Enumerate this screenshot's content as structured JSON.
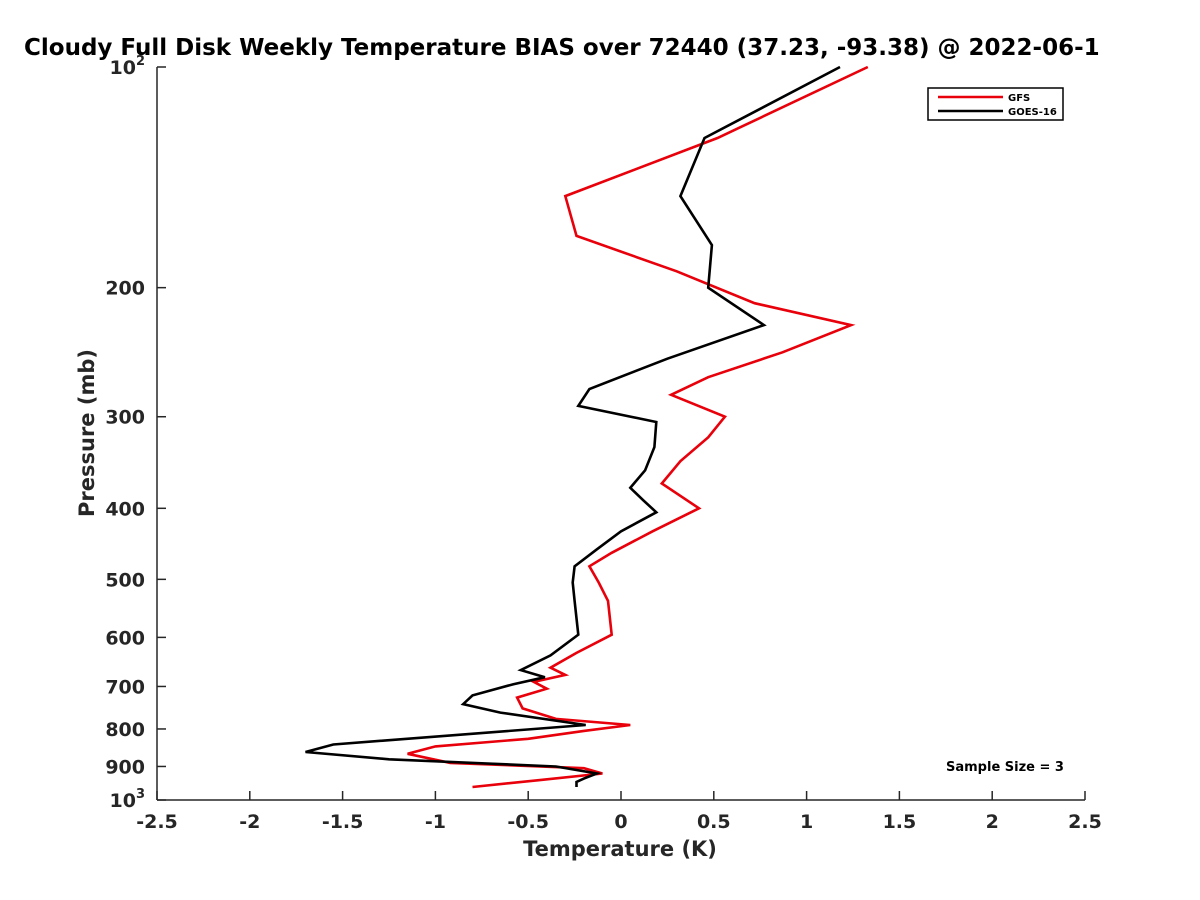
{
  "chart_data": {
    "type": "line",
    "title": "Cloudy Full Disk Weekly Temperature BIAS over 72440 (37.23, -93.38) @ 2022-06-1",
    "xlabel": "Temperature (K)",
    "ylabel": "Pressure (mb)",
    "xlim": [
      -2.5,
      2.5
    ],
    "ylim": [
      100,
      1000
    ],
    "y_scale": "log",
    "y_reversed": true,
    "grid": false,
    "legend_position": "top-right",
    "x_ticks": [
      {
        "value": -2.5,
        "label": "-2.5"
      },
      {
        "value": -2,
        "label": "-2"
      },
      {
        "value": -1.5,
        "label": "-1.5"
      },
      {
        "value": -1,
        "label": "-1"
      },
      {
        "value": -0.5,
        "label": "-0.5"
      },
      {
        "value": 0,
        "label": "0"
      },
      {
        "value": 0.5,
        "label": "0.5"
      },
      {
        "value": 1,
        "label": "1"
      },
      {
        "value": 1.5,
        "label": "1.5"
      },
      {
        "value": 2,
        "label": "2"
      },
      {
        "value": 2.5,
        "label": "2.5"
      }
    ],
    "y_ticks": [
      {
        "value": 100,
        "base": "10",
        "exp": "2"
      },
      {
        "value": 200,
        "base": "200",
        "exp": ""
      },
      {
        "value": 300,
        "base": "300",
        "exp": ""
      },
      {
        "value": 400,
        "base": "400",
        "exp": ""
      },
      {
        "value": 500,
        "base": "500",
        "exp": ""
      },
      {
        "value": 600,
        "base": "600",
        "exp": ""
      },
      {
        "value": 700,
        "base": "700",
        "exp": ""
      },
      {
        "value": 800,
        "base": "800",
        "exp": ""
      },
      {
        "value": 900,
        "base": "900",
        "exp": ""
      },
      {
        "value": 1000,
        "base": "10",
        "exp": "3"
      }
    ],
    "series": [
      {
        "name": "GFS",
        "color": "#e8000b",
        "points": [
          [
            1.33,
            100
          ],
          [
            0.52,
            125
          ],
          [
            -0.3,
            150
          ],
          [
            -0.24,
            170
          ],
          [
            0.3,
            190
          ],
          [
            0.72,
            210
          ],
          [
            1.24,
            225
          ],
          [
            0.87,
            245
          ],
          [
            0.47,
            265
          ],
          [
            0.27,
            280
          ],
          [
            0.56,
            300
          ],
          [
            0.47,
            320
          ],
          [
            0.32,
            345
          ],
          [
            0.22,
            370
          ],
          [
            0.42,
            400
          ],
          [
            0.17,
            430
          ],
          [
            -0.05,
            460
          ],
          [
            -0.17,
            480
          ],
          [
            -0.12,
            505
          ],
          [
            -0.07,
            535
          ],
          [
            -0.06,
            565
          ],
          [
            -0.05,
            595
          ],
          [
            -0.24,
            630
          ],
          [
            -0.38,
            660
          ],
          [
            -0.3,
            675
          ],
          [
            -0.47,
            690
          ],
          [
            -0.4,
            705
          ],
          [
            -0.56,
            725
          ],
          [
            -0.53,
            750
          ],
          [
            -0.35,
            775
          ],
          [
            0.05,
            790
          ],
          [
            -0.2,
            805
          ],
          [
            -0.5,
            825
          ],
          [
            -1.0,
            845
          ],
          [
            -1.15,
            865
          ],
          [
            -0.92,
            890
          ],
          [
            -0.2,
            905
          ],
          [
            -0.1,
            920
          ],
          [
            -0.45,
            940
          ],
          [
            -0.8,
            960
          ]
        ]
      },
      {
        "name": "GOES-16",
        "color": "#000000",
        "points": [
          [
            1.18,
            100
          ],
          [
            0.45,
            125
          ],
          [
            0.32,
            150
          ],
          [
            0.49,
            175
          ],
          [
            0.47,
            200
          ],
          [
            0.77,
            225
          ],
          [
            0.25,
            250
          ],
          [
            -0.17,
            275
          ],
          [
            -0.23,
            290
          ],
          [
            0.19,
            305
          ],
          [
            0.18,
            330
          ],
          [
            0.13,
            355
          ],
          [
            0.05,
            375
          ],
          [
            0.12,
            390
          ],
          [
            0.19,
            405
          ],
          [
            0.0,
            430
          ],
          [
            -0.13,
            455
          ],
          [
            -0.25,
            480
          ],
          [
            -0.26,
            505
          ],
          [
            -0.25,
            535
          ],
          [
            -0.24,
            565
          ],
          [
            -0.23,
            595
          ],
          [
            -0.38,
            635
          ],
          [
            -0.54,
            665
          ],
          [
            -0.41,
            680
          ],
          [
            -0.58,
            695
          ],
          [
            -0.8,
            720
          ],
          [
            -0.85,
            740
          ],
          [
            -0.65,
            760
          ],
          [
            -0.19,
            790
          ],
          [
            -1.55,
            840
          ],
          [
            -1.7,
            860
          ],
          [
            -1.25,
            880
          ],
          [
            -0.35,
            900
          ],
          [
            -0.13,
            920
          ],
          [
            -0.2,
            935
          ],
          [
            -0.24,
            945
          ],
          [
            -0.24,
            960
          ]
        ]
      }
    ],
    "annotations": [
      {
        "text": "Sample Size = 3"
      }
    ]
  }
}
